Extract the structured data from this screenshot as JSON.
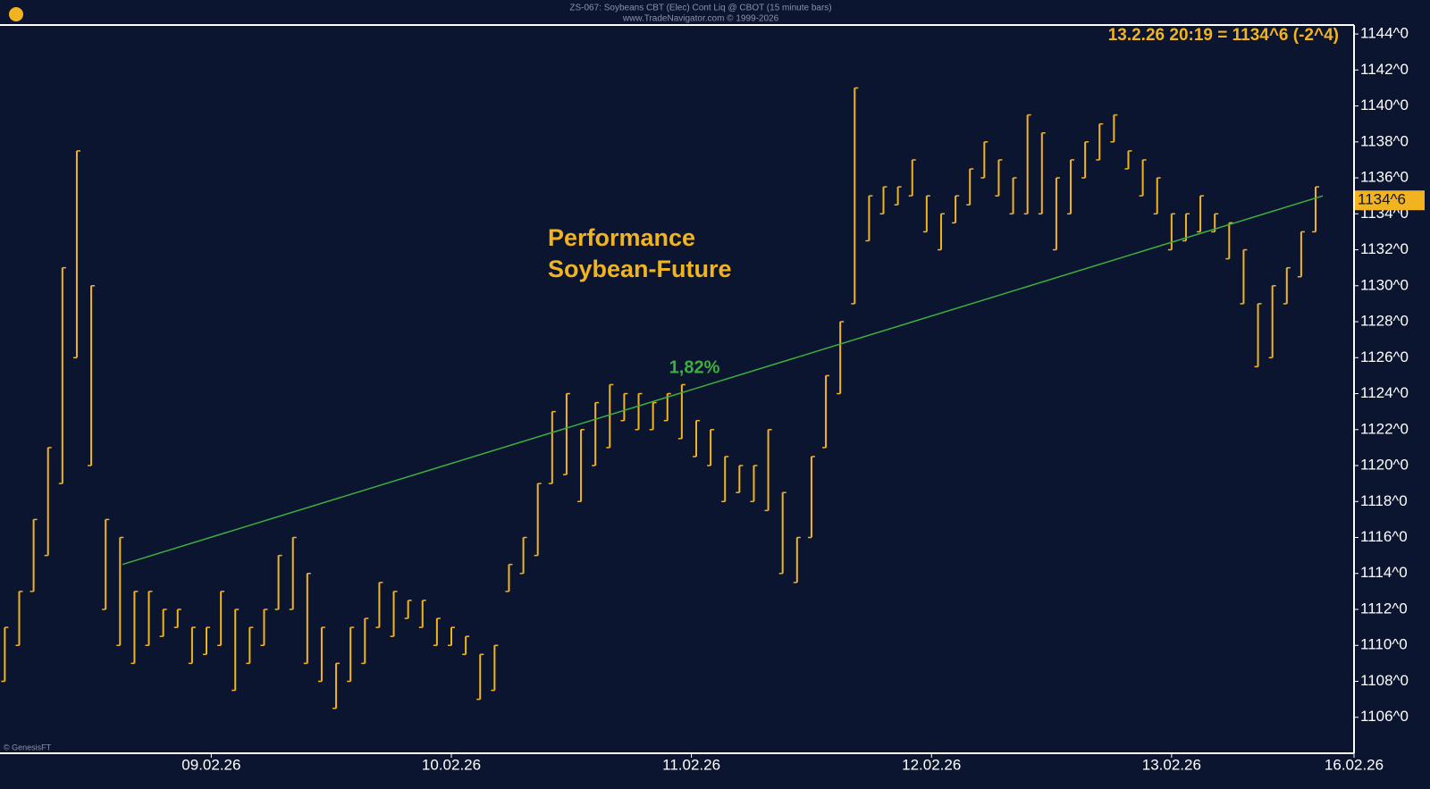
{
  "chart_data": {
    "type": "range",
    "header": "ZS-067:  Soybeans CBT (Elec) Cont Liq @ CBOT  (15 minute bars)",
    "subheader": "www.TradeNavigator.com © 1999-2026",
    "quote": "13.2.26 20:19 = 1134^6 (-2^4)",
    "title": [
      "Performance",
      "Soybean-Future"
    ],
    "credit": "© GenesisFT",
    "color": "#f2b321",
    "xlim": [
      0.12,
      5.76
    ],
    "ylim": [
      1104,
      1144.5
    ],
    "xticks": [
      {
        "value": 1,
        "label": "09.02.26"
      },
      {
        "value": 2,
        "label": "10.02.26"
      },
      {
        "value": 3,
        "label": "11.02.26"
      },
      {
        "value": 4,
        "label": "12.02.26"
      },
      {
        "value": 5,
        "label": "13.02.26"
      },
      {
        "value": 5.76,
        "label": "16.02.26"
      }
    ],
    "yticks": [
      {
        "value": 1106,
        "label": "1106^0"
      },
      {
        "value": 1108,
        "label": "1108^0"
      },
      {
        "value": 1110,
        "label": "1110^0"
      },
      {
        "value": 1112,
        "label": "1112^0"
      },
      {
        "value": 1114,
        "label": "1114^0"
      },
      {
        "value": 1116,
        "label": "1116^0"
      },
      {
        "value": 1118,
        "label": "1118^0"
      },
      {
        "value": 1120,
        "label": "1120^0"
      },
      {
        "value": 1122,
        "label": "1122^0"
      },
      {
        "value": 1124,
        "label": "1124^0"
      },
      {
        "value": 1126,
        "label": "1126^0"
      },
      {
        "value": 1128,
        "label": "1128^0"
      },
      {
        "value": 1130,
        "label": "1130^0"
      },
      {
        "value": 1132,
        "label": "1132^0"
      },
      {
        "value": 1134,
        "label": "1134^0"
      },
      {
        "value": 1136,
        "label": "1136^0"
      },
      {
        "value": 1138,
        "label": "1138^0"
      },
      {
        "value": 1140,
        "label": "1140^0"
      },
      {
        "value": 1142,
        "label": "1142^0"
      },
      {
        "value": 1144,
        "label": "1144^0"
      }
    ],
    "last_price": {
      "value": 1134.75,
      "label": "1134^6"
    },
    "x": [
      0.14,
      0.2,
      0.26,
      0.32,
      0.38,
      0.44,
      0.5,
      0.56,
      0.62,
      0.68,
      0.74,
      0.8,
      0.86,
      0.92,
      0.98,
      1.04,
      1.1,
      1.16,
      1.22,
      1.28,
      1.34,
      1.4,
      1.46,
      1.52,
      1.58,
      1.64,
      1.7,
      1.76,
      1.82,
      1.88,
      1.94,
      2.0,
      2.06,
      2.12,
      2.18,
      2.24,
      2.3,
      2.36,
      2.42,
      2.48,
      2.54,
      2.6,
      2.66,
      2.72,
      2.78,
      2.84,
      2.9,
      2.96,
      3.02,
      3.08,
      3.14,
      3.2,
      3.26,
      3.32,
      3.38,
      3.44,
      3.5,
      3.56,
      3.62,
      3.68,
      3.74,
      3.8,
      3.86,
      3.92,
      3.98,
      4.04,
      4.1,
      4.16,
      4.22,
      4.28,
      4.34,
      4.4,
      4.46,
      4.52,
      4.58,
      4.64,
      4.7,
      4.76,
      4.82,
      4.88,
      4.94,
      5.0,
      5.06,
      5.12,
      5.18,
      5.24,
      5.3,
      5.36,
      5.42,
      5.48,
      5.54,
      5.6
    ],
    "high": [
      1111,
      1113,
      1117,
      1121,
      1131,
      1137.5,
      1130,
      1117,
      1116,
      1113,
      1113,
      1112,
      1112,
      1111,
      1111,
      1113,
      1112,
      1111,
      1112,
      1115,
      1116,
      1114,
      1111,
      1109,
      1111,
      1111.5,
      1113.5,
      1113,
      1112.5,
      1112.5,
      1111.5,
      1111,
      1110.5,
      1109.5,
      1110,
      1114.5,
      1116,
      1119,
      1123,
      1124,
      1122,
      1123.5,
      1124.5,
      1124,
      1124,
      1123.5,
      1124,
      1124.5,
      1122.5,
      1122,
      1120.5,
      1120,
      1120,
      1122,
      1118.5,
      1116,
      1120.5,
      1125,
      1128,
      1141,
      1135,
      1135.5,
      1135.5,
      1137,
      1135,
      1134,
      1135,
      1136.5,
      1138,
      1137,
      1136,
      1139.5,
      1138.5,
      1136,
      1137,
      1138,
      1139,
      1139.5,
      1137.5,
      1137,
      1136,
      1134,
      1134,
      1135,
      1134,
      1133.5,
      1132,
      1129,
      1130,
      1131,
      1133,
      1135.5
    ],
    "low": [
      1108,
      1110,
      1113,
      1115,
      1119,
      1126,
      1120,
      1112,
      1110,
      1109,
      1110,
      1110.5,
      1111,
      1109,
      1109.5,
      1110,
      1107.5,
      1109,
      1110,
      1112,
      1112,
      1109,
      1108,
      1106.5,
      1108,
      1109,
      1111,
      1110.5,
      1111.5,
      1111,
      1110,
      1110,
      1109.5,
      1107,
      1107.5,
      1113,
      1114,
      1115,
      1119,
      1119.5,
      1118,
      1120,
      1121,
      1122.5,
      1122,
      1122,
      1122.5,
      1121.5,
      1120.5,
      1120,
      1118,
      1118.5,
      1118,
      1117.5,
      1114,
      1113.5,
      1116,
      1121,
      1124,
      1129,
      1132.5,
      1134,
      1134.5,
      1135,
      1133,
      1132,
      1133.5,
      1134.5,
      1136,
      1135,
      1134,
      1134,
      1134,
      1132,
      1134,
      1136,
      1137,
      1138,
      1136.5,
      1135,
      1134,
      1132,
      1132.5,
      1133,
      1133,
      1131.5,
      1129,
      1125.5,
      1126,
      1129,
      1130.5,
      1133
    ],
    "trendline": {
      "x": [
        0.63,
        5.63
      ],
      "y": [
        1114.5,
        1135
      ],
      "color": "#3fae3f",
      "label": "1,82%"
    }
  }
}
